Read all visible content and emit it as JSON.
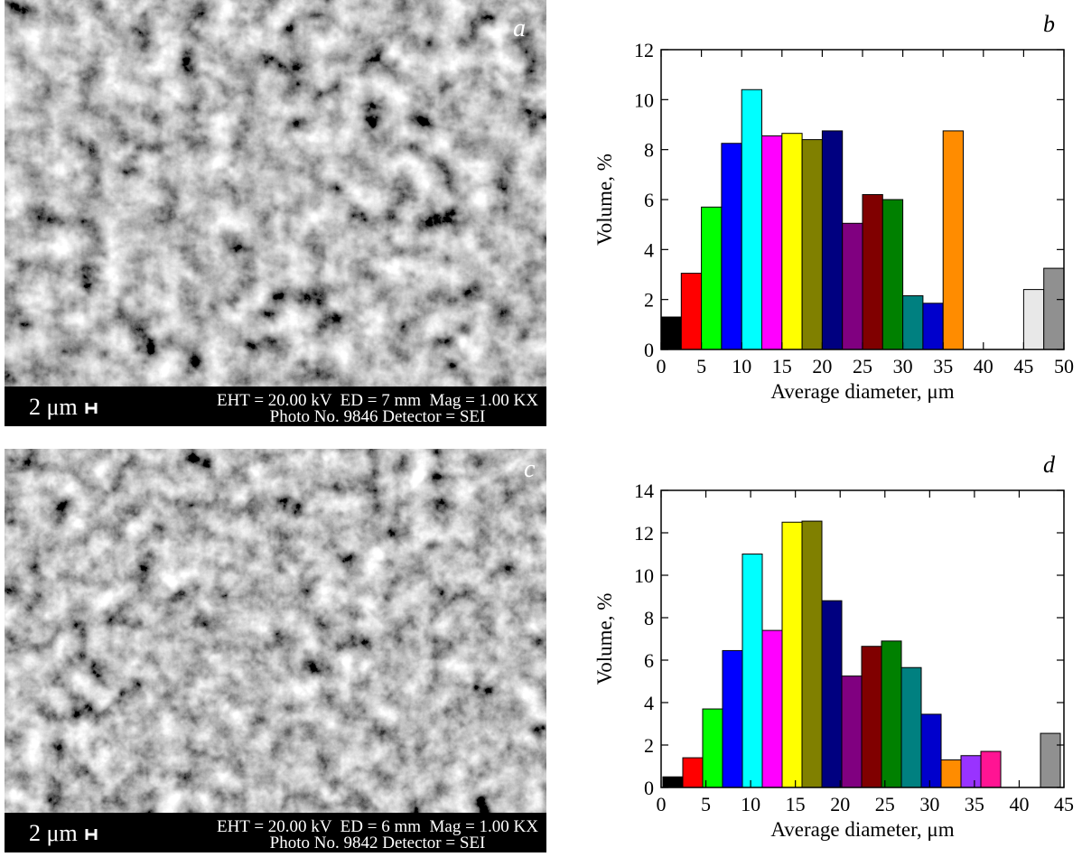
{
  "panels": [
    {
      "letter": "a",
      "scale_bar": "2 μm",
      "info": [
        "EHT = 20.00 kV  ED = 7 mm  Mag = 1.00 KX",
        "Photo No. 9846 Detector = SEI"
      ]
    },
    {
      "letter": "c",
      "scale_bar": "2 μm",
      "info": [
        "EHT = 20.00 kV  ED = 6 mm  Mag = 1.00 KX",
        "Photo No. 9842 Detector = SEI"
      ]
    }
  ],
  "chart_data": [
    {
      "type": "histogram",
      "panel_letter": "b",
      "xlabel": "Average diameter, μm",
      "ylabel": "Volume, %",
      "bins": [
        0,
        2.5,
        5,
        7.5,
        10,
        12.5,
        15,
        17.5,
        20,
        22.5,
        25,
        27.5,
        30,
        32.5,
        35,
        37.5,
        40,
        42.5,
        45,
        47.5,
        50
      ],
      "values": [
        1.3,
        3.05,
        5.7,
        8.25,
        10.4,
        8.55,
        8.65,
        8.4,
        8.75,
        5.05,
        6.2,
        6.0,
        2.15,
        1.85,
        8.75,
        0,
        0,
        0,
        2.4,
        3.25
      ],
      "colors": [
        "#000000",
        "#ff0000",
        "#00ff00",
        "#0000ff",
        "#00ffff",
        "#ff00ff",
        "#ffff00",
        "#808000",
        "#000080",
        "#800080",
        "#800000",
        "#008000",
        "#008080",
        "#0000cc",
        "#ff8c00",
        "#ffffff",
        "#ffffff",
        "#ffffff",
        "#e8e8e8",
        "#909090"
      ],
      "xlim": [
        0,
        50
      ],
      "ylim": [
        0,
        12
      ],
      "xticks": [
        0,
        5,
        10,
        15,
        20,
        25,
        30,
        35,
        40,
        45,
        50
      ],
      "yticks": [
        0,
        2,
        4,
        6,
        8,
        10,
        12
      ]
    },
    {
      "type": "histogram",
      "panel_letter": "d",
      "xlabel": "Average diameter, μm",
      "ylabel": "Volume, %",
      "bins": [
        0.2,
        2.42,
        4.64,
        6.86,
        9.08,
        11.3,
        13.52,
        15.74,
        17.96,
        20.18,
        22.4,
        24.62,
        26.84,
        29.06,
        31.28,
        33.5,
        35.72,
        37.94,
        40.16,
        42.38,
        44.6
      ],
      "values": [
        0.5,
        1.4,
        3.7,
        6.45,
        11.0,
        7.4,
        12.5,
        12.55,
        8.8,
        5.25,
        6.65,
        6.9,
        5.65,
        3.45,
        1.3,
        1.5,
        1.7,
        0,
        0,
        2.55
      ],
      "colors": [
        "#000000",
        "#ff0000",
        "#00ff00",
        "#0000ff",
        "#00ffff",
        "#ff00ff",
        "#ffff00",
        "#808000",
        "#000080",
        "#800080",
        "#800000",
        "#008000",
        "#008080",
        "#0000cc",
        "#ff8c00",
        "#9933ff",
        "#ff1493",
        "#ffffff",
        "#ffffff",
        "#909090"
      ],
      "xlim": [
        0,
        45
      ],
      "ylim": [
        0,
        14
      ],
      "xticks": [
        0,
        5,
        10,
        15,
        20,
        25,
        30,
        35,
        40,
        45
      ],
      "yticks": [
        0,
        2,
        4,
        6,
        8,
        10,
        12,
        14
      ]
    }
  ]
}
